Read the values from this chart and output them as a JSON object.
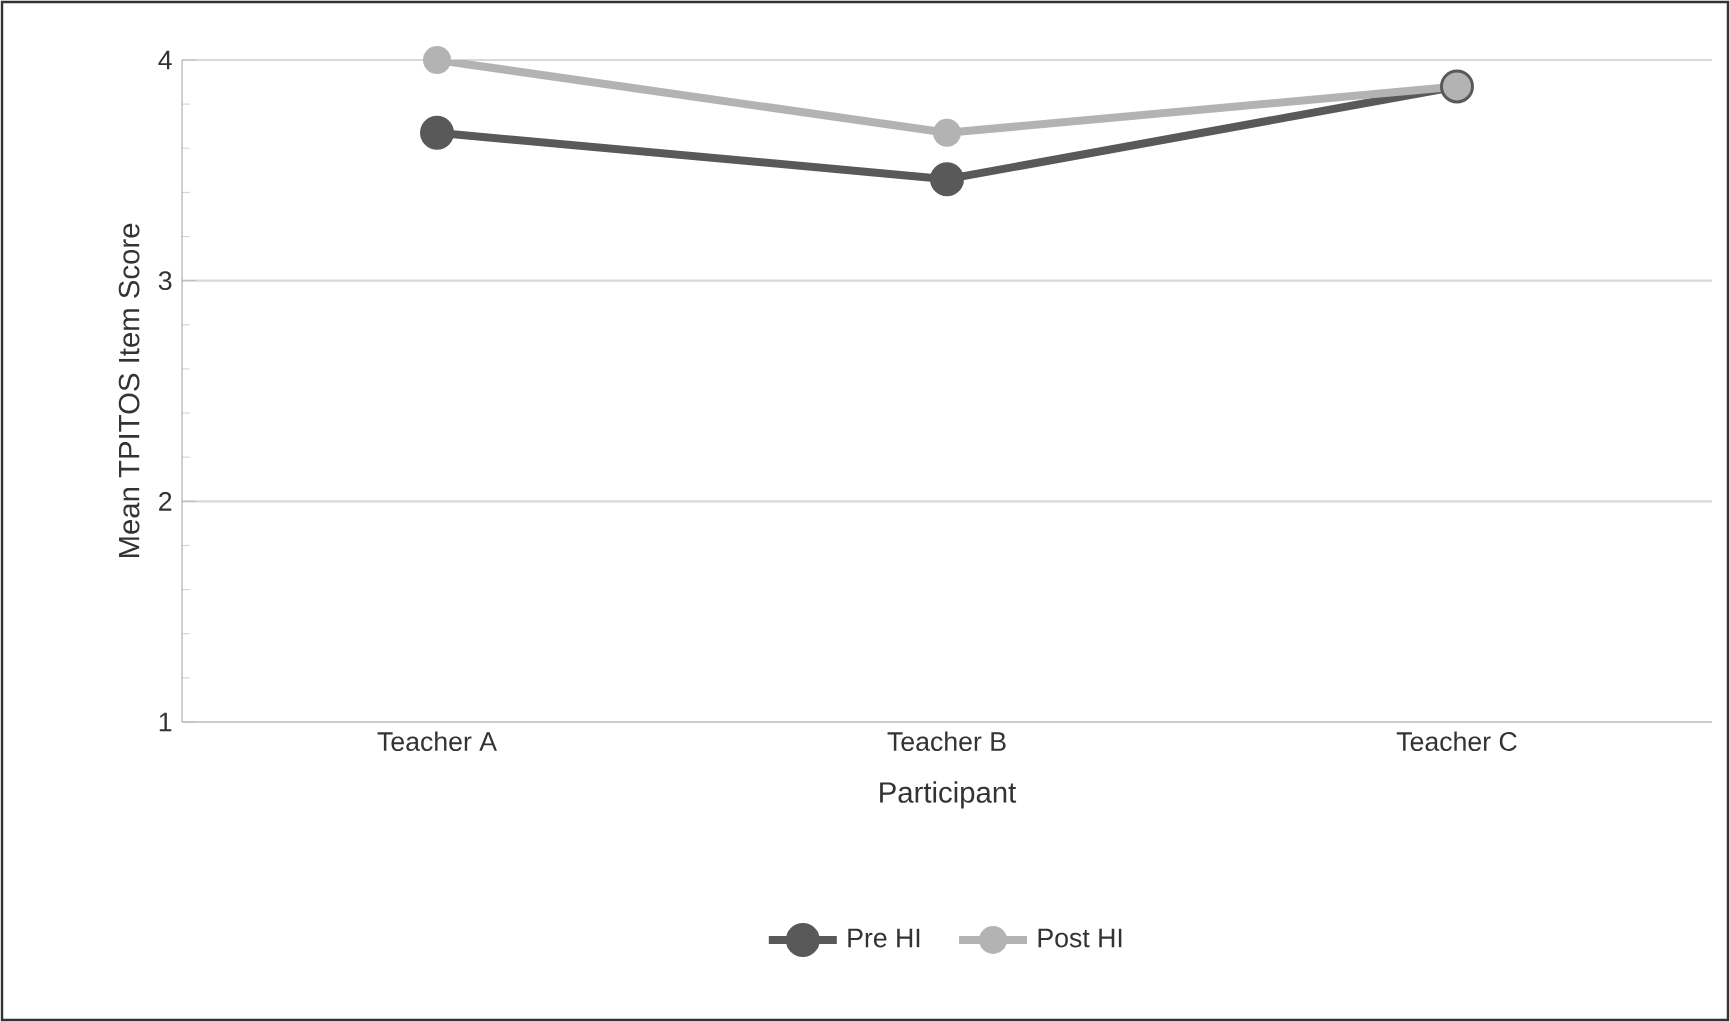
{
  "chart_data": {
    "type": "line",
    "xlabel": "Participant",
    "ylabel": "Mean TPITOS Item Score",
    "categories": [
      "Teacher A",
      "Teacher B",
      "Teacher C"
    ],
    "series": [
      {
        "name": "Pre HI",
        "color": "#595959",
        "values": [
          3.67,
          3.46,
          3.88
        ]
      },
      {
        "name": "Post HI",
        "color": "#b3b3b3",
        "values": [
          4.0,
          3.67,
          3.88
        ]
      }
    ],
    "ylim": [
      1,
      4
    ],
    "yticks": [
      1,
      2,
      3,
      4
    ],
    "grid": "y",
    "legend": "bottom",
    "marker": "circle",
    "line_style": "solid"
  }
}
